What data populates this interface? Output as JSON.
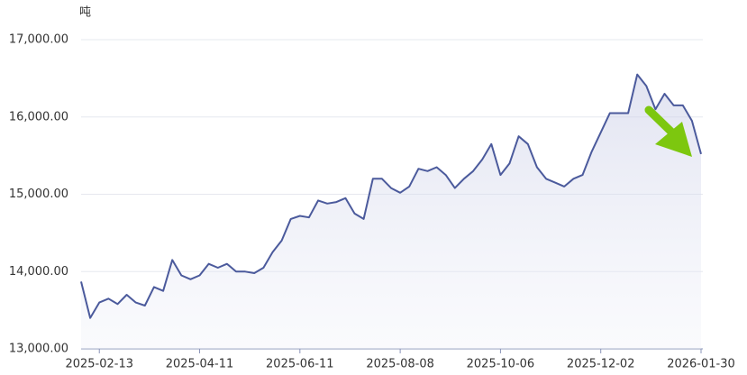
{
  "chart_data": {
    "type": "line",
    "unit": "吨",
    "categories": [
      null,
      null,
      "2025-02-13",
      null,
      null,
      null,
      null,
      null,
      null,
      null,
      null,
      null,
      null,
      "2025-04-11",
      null,
      null,
      null,
      null,
      null,
      null,
      null,
      null,
      null,
      null,
      "2025-06-11",
      null,
      null,
      null,
      null,
      null,
      null,
      null,
      null,
      null,
      null,
      "2025-08-08",
      null,
      null,
      null,
      null,
      null,
      null,
      null,
      null,
      null,
      null,
      "2025-10-06",
      null,
      null,
      null,
      null,
      null,
      null,
      null,
      null,
      null,
      null,
      "2025-12-02",
      null,
      null,
      null,
      null,
      null,
      null,
      null,
      null,
      null,
      null,
      "2026-01-30"
    ],
    "series": [
      {
        "color": "#4b5a9c",
        "values": [
          13870,
          13400,
          13600,
          13650,
          13580,
          13700,
          13600,
          13560,
          13800,
          13750,
          14150,
          13950,
          13900,
          13950,
          14100,
          14050,
          14100,
          14000,
          14000,
          13980,
          14050,
          14250,
          14400,
          14680,
          14720,
          14700,
          14920,
          14880,
          14900,
          14950,
          14750,
          14680,
          15200,
          15200,
          15080,
          15020,
          15100,
          15330,
          15300,
          15350,
          15250,
          15080,
          15200,
          15300,
          15450,
          15650,
          15250,
          15400,
          15750,
          15650,
          15350,
          15200,
          15150,
          15100,
          15200,
          15250,
          15550,
          15800,
          16050,
          16050,
          16050,
          16550,
          16400,
          16100,
          16300,
          16150,
          16150,
          15950,
          15520
        ]
      }
    ],
    "ylim": [
      13000,
      17000
    ],
    "yticks": [
      {
        "value": 13000,
        "label": "13,000.00"
      },
      {
        "value": 14000,
        "label": "14,000.00"
      },
      {
        "value": 15000,
        "label": "15,000.00"
      },
      {
        "value": 16000,
        "label": "16,000.00"
      },
      {
        "value": 17000,
        "label": "17,000.00"
      }
    ],
    "grid": true
  }
}
